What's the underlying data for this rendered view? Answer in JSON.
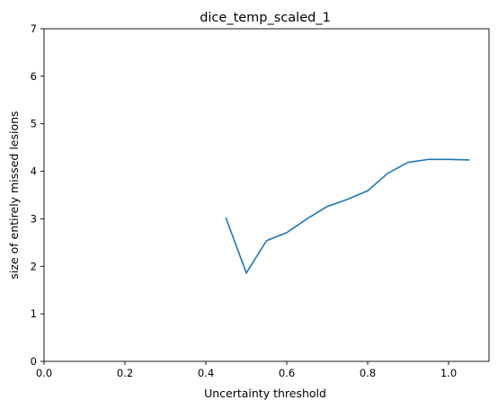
{
  "chart_data": {
    "type": "line",
    "title": "dice_temp_scaled_1",
    "xlabel": "Uncertainty threshold",
    "ylabel": "size of entirely missed lesions",
    "xlim": [
      0.0,
      1.1
    ],
    "ylim": [
      0,
      7
    ],
    "xticks": [
      0.0,
      0.2,
      0.4,
      0.6,
      0.8,
      1.0
    ],
    "xtick_labels": [
      "0.0",
      "0.2",
      "0.4",
      "0.6",
      "0.8",
      "1.0"
    ],
    "yticks": [
      0,
      1,
      2,
      3,
      4,
      5,
      6,
      7
    ],
    "ytick_labels": [
      "0",
      "1",
      "2",
      "3",
      "4",
      "5",
      "6",
      "7"
    ],
    "grid": false,
    "series": [
      {
        "color": "#1f77b4",
        "x": [
          0.45,
          0.5,
          0.55,
          0.6,
          0.65,
          0.7,
          0.75,
          0.8,
          0.85,
          0.9,
          0.95,
          1.0,
          1.05
        ],
        "y": [
          3.01,
          1.86,
          2.54,
          2.71,
          3.0,
          3.26,
          3.41,
          3.59,
          3.96,
          4.19,
          4.25,
          4.25,
          4.24
        ]
      }
    ]
  }
}
